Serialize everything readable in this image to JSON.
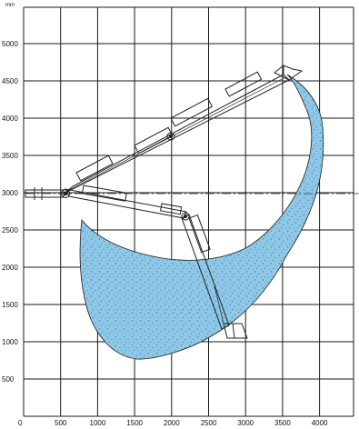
{
  "diagram": {
    "unit_label": "mm",
    "x_ticks": [
      "0",
      "500",
      "1000",
      "1500",
      "2000",
      "2500",
      "3000",
      "3500",
      "4000"
    ],
    "y_ticks": [
      "5000",
      "4500",
      "4000",
      "3500",
      "3000",
      "2500",
      "2000",
      "1500",
      "1000",
      "500"
    ],
    "colors": {
      "envelope_fill": "#8fc8e6",
      "envelope_stipple": "#3d7fb6",
      "grid": "#1a1a1a",
      "boom": "#222222"
    }
  }
}
